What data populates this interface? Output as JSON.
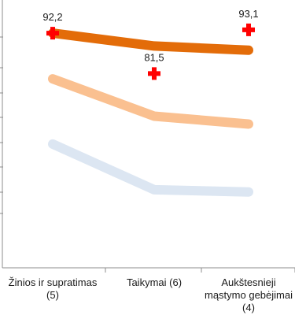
{
  "chart_data": {
    "type": "line",
    "title": "",
    "ylabel": "",
    "xlabel": "",
    "categories": [
      "Žinios ir supratimas (5)",
      "Taikymai (6)",
      "Aukštesnieji mąstymo gebėjimai (4)"
    ],
    "ylim": [
      30,
      101
    ],
    "grid": false,
    "series": [
      {
        "values": [
          92.2,
          88.8,
          87.7
        ],
        "color": "#e36c09",
        "style": "line"
      },
      {
        "values": [
          80.1,
          70.2,
          68.1
        ],
        "color": "#fac090",
        "style": "line"
      },
      {
        "values": [
          62.8,
          50.7,
          50.1
        ],
        "color": "#dce6f2",
        "style": "line"
      },
      {
        "values": [
          92.2,
          81.5,
          93.1
        ],
        "color": "#ff0000",
        "style": "marker-plus",
        "labels": [
          "92,2",
          "81,5",
          "93,1"
        ]
      }
    ]
  }
}
